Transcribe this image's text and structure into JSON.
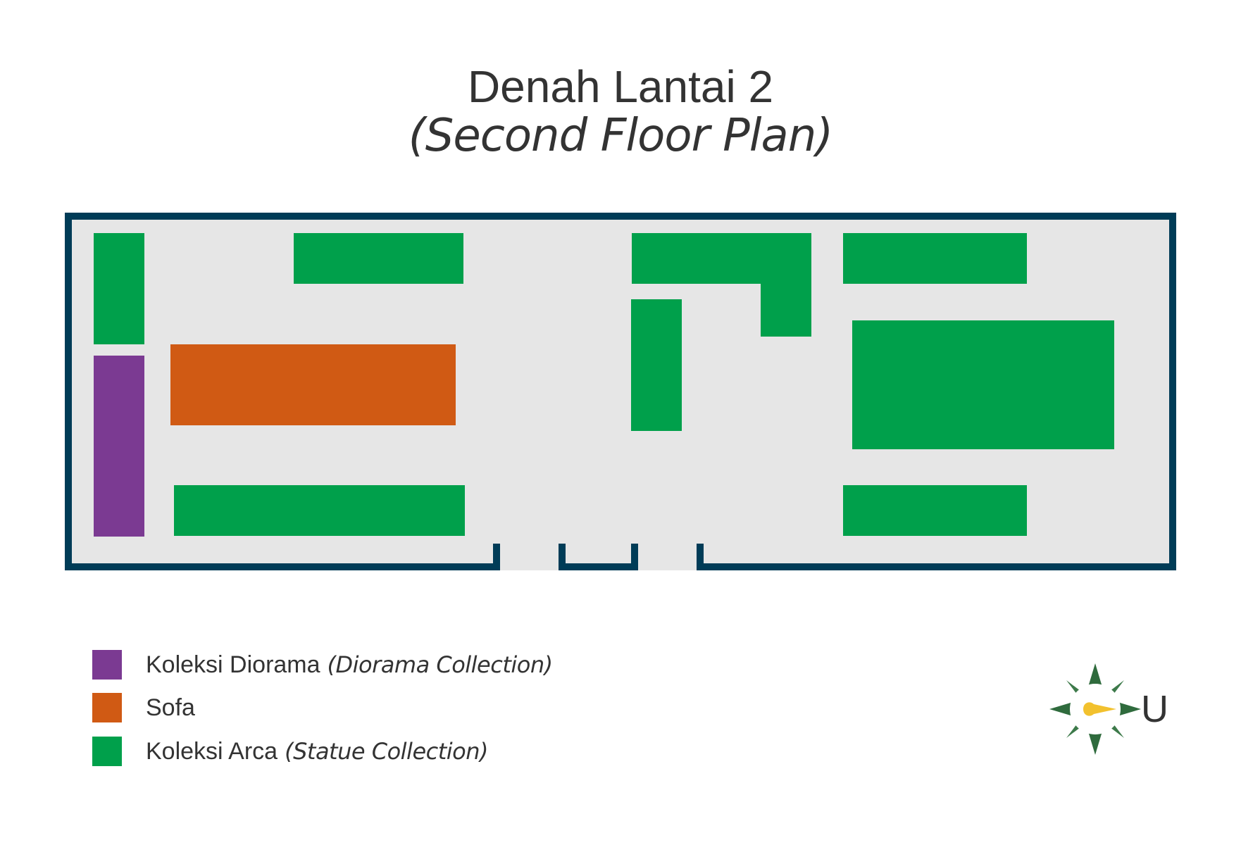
{
  "title": {
    "main": "Denah Lantai 2",
    "sub": "(Second Floor Plan)"
  },
  "legend": [
    {
      "label": "Koleksi Diorama",
      "translation": "(Diorama Collection)",
      "color": "#7b3a92"
    },
    {
      "label": "Sofa",
      "translation": "",
      "color": "#d05a14"
    },
    {
      "label": "Koleksi Arca",
      "translation": "(Statue Collection)",
      "color": "#00a04b"
    }
  ],
  "compass": {
    "letter": "U",
    "color": "#2f6b3d",
    "needle_color": "#f2c12e"
  },
  "colors": {
    "wall": "#003c57",
    "floor": "#e6e6e6",
    "statue": "#00a04b",
    "sofa": "#d05a14",
    "diorama": "#7b3a92"
  }
}
